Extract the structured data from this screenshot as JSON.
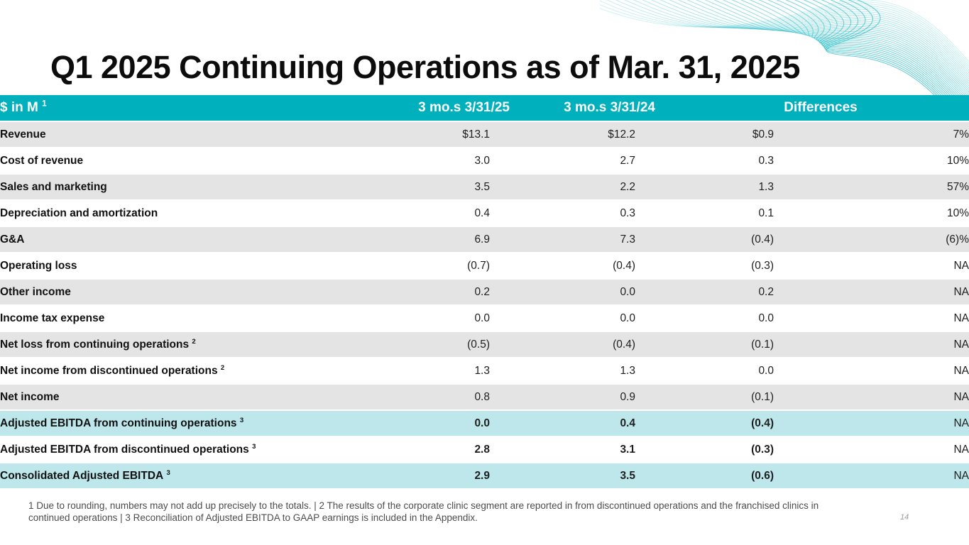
{
  "slide": {
    "title": "Q1 2025 Continuing Operations as of Mar. 31, 2025",
    "page_number": "14",
    "accent_color": "#00b0bd",
    "row_teal_color": "#bde7ea",
    "row_gray_color": "#e4e4e4",
    "footnote_lines": [
      "1 Due to rounding, numbers may not add up precisely to the totals. | 2 The results of the corporate clinic segment are reported in from discontinued operations and the franchised clinics in",
      "continued operations | 3 Reconciliation of Adjusted EBITDA to GAAP earnings is included in the Appendix."
    ]
  },
  "table": {
    "header": {
      "col1": {
        "label": "$ in M",
        "sup": "1"
      },
      "col2": "3 mo.s 3/31/25",
      "col3": "3 mo.s 3/31/24",
      "col4": "Differences"
    },
    "rows": [
      {
        "label": "Revenue",
        "sup": "",
        "values": [
          "$13.1",
          "$12.2",
          "$0.9",
          "7%"
        ],
        "bg": "gray",
        "bold": false
      },
      {
        "label": "Cost of revenue",
        "sup": "",
        "values": [
          "3.0",
          "2.7",
          "0.3",
          "10%"
        ],
        "bg": "white",
        "bold": false
      },
      {
        "label": "Sales and marketing",
        "sup": "",
        "values": [
          "3.5",
          "2.2",
          "1.3",
          "57%"
        ],
        "bg": "gray",
        "bold": false
      },
      {
        "label": "Depreciation and amortization",
        "sup": "",
        "values": [
          "0.4",
          "0.3",
          "0.1",
          "10%"
        ],
        "bg": "white",
        "bold": false
      },
      {
        "label": "G&A",
        "sup": "",
        "values": [
          "6.9",
          "7.3",
          "(0.4)",
          "(6)%"
        ],
        "bg": "gray",
        "bold": false
      },
      {
        "label": "Operating loss",
        "sup": "",
        "values": [
          "(0.7)",
          "(0.4)",
          "(0.3)",
          "NA"
        ],
        "bg": "white",
        "bold": false
      },
      {
        "label": "Other income",
        "sup": "",
        "values": [
          "0.2",
          "0.0",
          "0.2",
          "NA"
        ],
        "bg": "gray",
        "bold": false
      },
      {
        "label": "Income tax expense",
        "sup": "",
        "values": [
          "0.0",
          "0.0",
          "0.0",
          "NA"
        ],
        "bg": "white",
        "bold": false
      },
      {
        "label": "Net loss from continuing operations",
        "sup": "2",
        "values": [
          "(0.5)",
          "(0.4)",
          "(0.1)",
          "NA"
        ],
        "bg": "gray",
        "bold": false
      },
      {
        "label": "Net income from discontinued operations",
        "sup": "2",
        "values": [
          "1.3",
          "1.3",
          "0.0",
          "NA"
        ],
        "bg": "white",
        "bold": false
      },
      {
        "label": "Net income",
        "sup": "",
        "values": [
          "0.8",
          "0.9",
          "(0.1)",
          "NA"
        ],
        "bg": "gray",
        "bold": false
      },
      {
        "label": "Adjusted EBITDA from continuing operations",
        "sup": "3",
        "values": [
          "0.0",
          "0.4",
          "(0.4)",
          "NA"
        ],
        "bg": "teal",
        "bold": true
      },
      {
        "label": "Adjusted EBITDA from discontinued operations",
        "sup": "3",
        "values": [
          "2.8",
          "3.1",
          "(0.3)",
          "NA"
        ],
        "bg": "white",
        "bold": true
      },
      {
        "label": "Consolidated Adjusted EBITDA",
        "sup": "3",
        "values": [
          "2.9",
          "3.5",
          "(0.6)",
          "NA"
        ],
        "bg": "teal",
        "bold": true
      }
    ]
  }
}
